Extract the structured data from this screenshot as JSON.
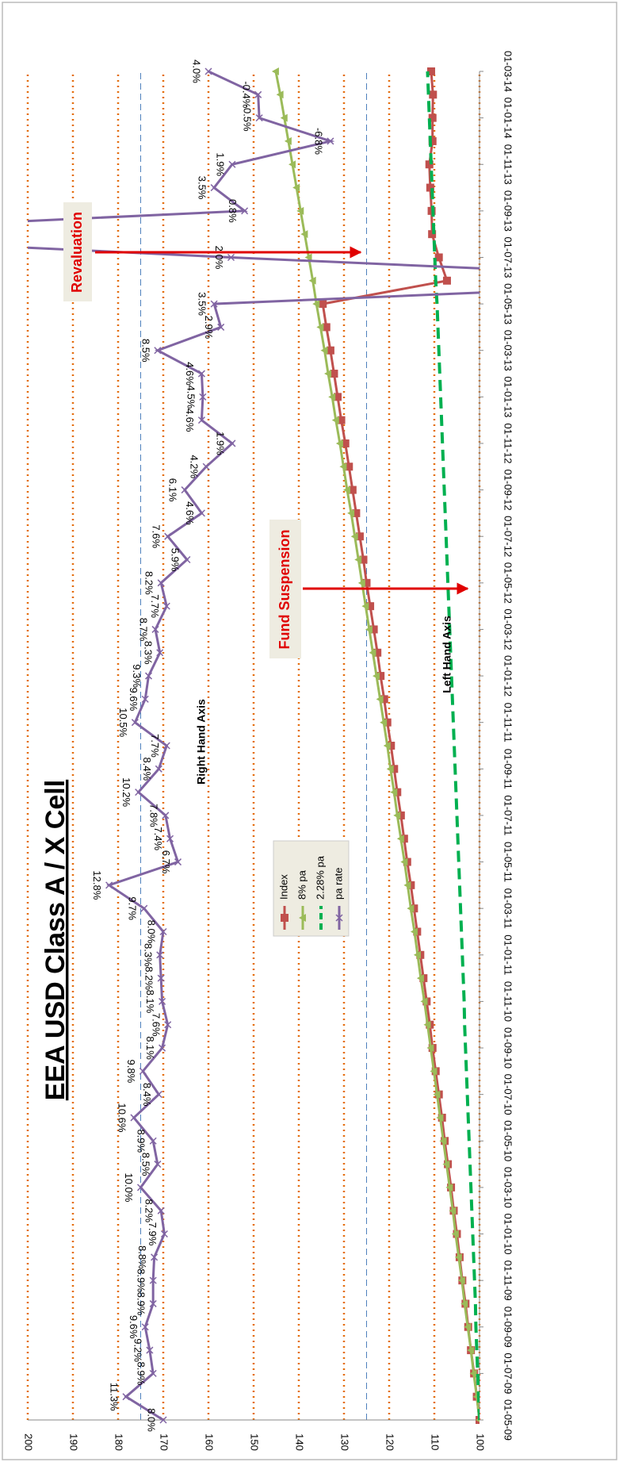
{
  "chart_data": {
    "type": "line",
    "title": "EEA USD Class A / X Cell",
    "categories": [
      "01-05-09",
      null,
      "01-07-09",
      null,
      "01-09-09",
      null,
      "01-11-09",
      null,
      "01-01-10",
      null,
      "01-03-10",
      null,
      "01-05-10",
      null,
      "01-07-10",
      null,
      "01-09-10",
      null,
      "01-11-10",
      null,
      "01-01-11",
      null,
      "01-03-11",
      null,
      "01-05-11",
      null,
      "01-07-11",
      null,
      "01-09-11",
      null,
      "01-11-11",
      null,
      "01-01-12",
      null,
      "01-03-12",
      null,
      "01-05-12",
      null,
      "01-07-12",
      null,
      "01-09-12",
      null,
      "01-11-12",
      null,
      "01-01-13",
      null,
      "01-03-13",
      null,
      "01-05-13",
      null,
      "01-07-13",
      null,
      "01-09-13",
      null,
      "01-11-13",
      null,
      "01-01-14",
      null,
      "01-03-14"
    ],
    "series": [
      {
        "name": "Index",
        "color": "#c0504d",
        "marker": "square",
        "dashed": false,
        "values": [
          100.0,
          100.6,
          101.2,
          101.9,
          102.5,
          103.1,
          103.8,
          104.4,
          105.0,
          105.7,
          106.3,
          107.0,
          107.7,
          108.3,
          109.0,
          109.7,
          110.4,
          111.0,
          111.7,
          112.4,
          113.1,
          113.8,
          114.5,
          115.2,
          116.0,
          116.7,
          117.4,
          118.2,
          118.9,
          119.6,
          120.4,
          121.1,
          121.9,
          122.6,
          123.4,
          124.2,
          125.0,
          125.7,
          126.5,
          127.3,
          128.1,
          128.9,
          129.7,
          130.6,
          131.4,
          132.2,
          133.0,
          133.9,
          134.7,
          107.2,
          109.0,
          110.5,
          110.6,
          110.9,
          111.1,
          110.4,
          110.4,
          110.3,
          110.7
        ]
      },
      {
        "name": "8% pa",
        "color": "#9bbb59",
        "marker": "triangle",
        "dashed": false,
        "values": [
          100.0,
          100.6,
          101.3,
          101.9,
          102.6,
          103.3,
          103.9,
          104.6,
          105.3,
          105.9,
          106.6,
          107.3,
          108.0,
          108.7,
          109.4,
          110.1,
          110.8,
          111.5,
          112.2,
          113.0,
          113.7,
          114.4,
          115.2,
          115.9,
          116.6,
          117.4,
          118.2,
          118.9,
          119.7,
          120.4,
          121.2,
          122.0,
          122.8,
          123.6,
          124.4,
          125.2,
          126.0,
          126.8,
          127.6,
          128.4,
          129.3,
          130.1,
          130.9,
          131.8,
          132.6,
          133.5,
          134.3,
          135.2,
          136.1,
          136.9,
          137.8,
          138.7,
          139.6,
          140.5,
          141.4,
          142.3,
          143.2,
          144.1,
          145.1
        ]
      },
      {
        "name": "2.28% pa",
        "color": "#00b050",
        "marker": "none",
        "dashed": true,
        "values": [
          100.0,
          100.2,
          100.4,
          100.6,
          100.8,
          100.9,
          101.1,
          101.3,
          101.5,
          101.7,
          101.9,
          102.1,
          102.3,
          102.5,
          102.7,
          102.9,
          103.1,
          103.3,
          103.4,
          103.6,
          103.8,
          104.0,
          104.2,
          104.4,
          104.6,
          104.8,
          105.0,
          105.2,
          105.4,
          105.6,
          105.8,
          106.0,
          106.2,
          106.4,
          106.6,
          106.8,
          107.0,
          107.2,
          107.4,
          107.6,
          107.8,
          108.0,
          108.2,
          108.4,
          108.6,
          108.8,
          109.0,
          109.2,
          109.4,
          109.7,
          109.9,
          110.1,
          110.3,
          110.5,
          110.7,
          110.9,
          111.1,
          111.3,
          111.5
        ]
      },
      {
        "name": "pa rate",
        "color": "#8064a2",
        "marker": "x",
        "dashed": false,
        "axis": "y2",
        "values": [
          8.0,
          11.3,
          8.9,
          9.2,
          9.6,
          8.9,
          8.9,
          8.8,
          7.9,
          8.2,
          10.0,
          8.5,
          8.9,
          10.6,
          8.4,
          9.8,
          8.1,
          7.6,
          8.1,
          8.2,
          8.3,
          8.0,
          9.7,
          12.8,
          6.7,
          7.4,
          7.8,
          10.2,
          8.4,
          7.7,
          10.5,
          9.6,
          9.3,
          8.3,
          8.7,
          7.7,
          8.2,
          5.9,
          7.6,
          4.6,
          6.1,
          4.2,
          1.9,
          4.6,
          4.5,
          4.6,
          8.5,
          2.9,
          3.5,
          -45,
          2.0,
          45,
          0.8,
          3.5,
          1.9,
          -6.8,
          -0.5,
          -0.4,
          4.0
        ],
        "value_labels": [
          "8.0%",
          "11.3%",
          "8.9%",
          "9.2%",
          "9.6%",
          "8.9%",
          "8.9%",
          "8.8%",
          "7.9%",
          "8.2%",
          "10.0%",
          "8.5%",
          "8.9%",
          "10.6%",
          "8.4%",
          "9.8%",
          "8.1%",
          "7.6%",
          "8.1%",
          "8.2%",
          "8.3%",
          "8.0%",
          "9.7%",
          "12.8%",
          "6.7%",
          "7.4%",
          "7.8%",
          "10.2%",
          "8.4%",
          "7.7%",
          "10.5%",
          "9.6%",
          "9.3%",
          "8.3%",
          "8.7%",
          "7.7%",
          "8.2%",
          "5.9%",
          "7.6%",
          "4.6%",
          "6.1%",
          "4.2%",
          "1.9%",
          "4.6%",
          "4.5%",
          "4.6%",
          "8.5%",
          "2.9%",
          "3.5%",
          null,
          "2.0%",
          null,
          "0.8%",
          "3.5%",
          "1.9%",
          "-6.8%",
          "-0.5%",
          "-0.4%",
          "4.0%"
        ]
      }
    ],
    "ylim": [
      100,
      200
    ],
    "yticks": [
      100,
      110,
      120,
      130,
      140,
      150,
      160,
      170,
      180,
      190,
      200
    ],
    "y2lim": [
      -20,
      20
    ],
    "y2grid": [
      -10,
      10
    ],
    "grid": true,
    "annotations": [
      "Revaluation",
      "Fund Suspension",
      "Right Hand Axis",
      "Left Hand Axis"
    ]
  }
}
